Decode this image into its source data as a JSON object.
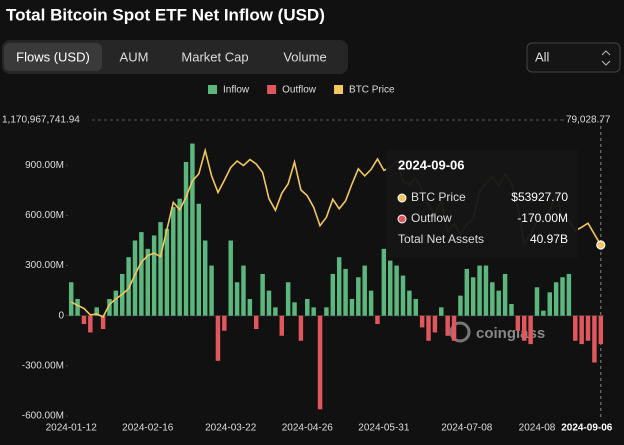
{
  "header": {
    "title": "Total Bitcoin Spot ETF Net Inflow (USD)",
    "tabs": [
      "Flows (USD)",
      "AUM",
      "Market Cap",
      "Volume"
    ],
    "select": "All"
  },
  "chart_data": {
    "type": "bar",
    "watermark": "coinglass",
    "categories": [
      "2024-01-12",
      null,
      null,
      null,
      null,
      null,
      null,
      null,
      null,
      null,
      null,
      null,
      "2024-02-16",
      null,
      null,
      null,
      null,
      null,
      null,
      null,
      null,
      null,
      null,
      null,
      null,
      "2024-03-22",
      null,
      null,
      null,
      null,
      null,
      null,
      null,
      null,
      null,
      null,
      null,
      "2024-04-26",
      null,
      null,
      null,
      null,
      null,
      null,
      null,
      null,
      null,
      null,
      null,
      "2024-05-31",
      null,
      null,
      null,
      null,
      null,
      null,
      null,
      null,
      null,
      null,
      null,
      null,
      "2024-07-08",
      null,
      null,
      null,
      null,
      null,
      null,
      null,
      null,
      null,
      null,
      "2024-08",
      null,
      null,
      null,
      null,
      null,
      null,
      null,
      null,
      null,
      "2024-09-06"
    ],
    "values": [
      200000000,
      100000000,
      -50000000,
      -100000000,
      50000000,
      -80000000,
      100000000,
      150000000,
      250000000,
      350000000,
      450000000,
      500000000,
      400000000,
      480000000,
      560000000,
      520000000,
      650000000,
      700000000,
      920000000,
      1030000000,
      670000000,
      450000000,
      300000000,
      -270000000,
      -90000000,
      450000000,
      200000000,
      300000000,
      100000000,
      -80000000,
      250000000,
      150000000,
      50000000,
      -120000000,
      200000000,
      80000000,
      -150000000,
      100000000,
      50000000,
      -560000000,
      50000000,
      250000000,
      350000000,
      280000000,
      100000000,
      230000000,
      300000000,
      150000000,
      -50000000,
      400000000,
      330000000,
      300000000,
      240000000,
      150000000,
      100000000,
      -70000000,
      -150000000,
      -100000000,
      50000000,
      -120000000,
      -150000000,
      120000000,
      280000000,
      230000000,
      300000000,
      300000000,
      200000000,
      150000000,
      250000000,
      70000000,
      -90000000,
      -150000000,
      -170000000,
      170000000,
      30000000,
      140000000,
      200000000,
      230000000,
      250000000,
      -150000000,
      -170000000,
      -150000000,
      -280000000,
      -170000000
    ],
    "series": [
      {
        "name": "Inflow",
        "color": "#5cb77e"
      },
      {
        "name": "Outflow",
        "color": "#e0585d"
      },
      {
        "name": "BTC Price",
        "color": "#f2c75c",
        "axis": "y2",
        "type": "line",
        "values": [
          42500,
          41800,
          41200,
          39900,
          40100,
          39500,
          42000,
          43100,
          44000,
          45200,
          48000,
          50500,
          51800,
          52300,
          51600,
          57000,
          62500,
          61000,
          63500,
          66800,
          68200,
          72900,
          67800,
          64500,
          66900,
          69500,
          70800,
          69900,
          71100,
          70200,
          68500,
          63200,
          60900,
          64300,
          66200,
          70600,
          65000,
          63800,
          61500,
          57800,
          59500,
          63100,
          61200,
          62800,
          66200,
          69200,
          67800,
          69100,
          71200,
          68900,
          69500,
          70800,
          66700,
          66000,
          67400,
          64900,
          61800,
          60300,
          62800,
          56600,
          58200,
          56100,
          58000,
          59200,
          64800,
          66400,
          67600,
          65800,
          68200,
          66300,
          61400,
          54200,
          56000,
          58700,
          59100,
          60800,
          64100,
          59400,
          58900,
          56800,
          57500,
          58300,
          56100,
          53927.7
        ]
      }
    ],
    "ylim": [
      -624000000,
      1170967741.94
    ],
    "yticks": [
      {
        "value": 1170967741.94,
        "label": "1,170,967,741.94"
      },
      {
        "value": 900000000,
        "label": "900.00M"
      },
      {
        "value": 600000000,
        "label": "600.00M"
      },
      {
        "value": 300000000,
        "label": "300.00M"
      },
      0,
      {
        "value": -300000000,
        "label": "-300.00M"
      },
      {
        "value": -600000000,
        "label": "-600.00M"
      }
    ],
    "y2lim": [
      18788,
      79028.77
    ],
    "y2ticks": [
      {
        "value": 79028.77,
        "label": "79,028.77"
      }
    ],
    "grid": false,
    "tooltip": {
      "date": "2024-09-06",
      "items": [
        {
          "name": "BTC Price",
          "color": "#f2c75c",
          "value": 53927.7,
          "value_label": "$53927.70"
        },
        {
          "name": "Outflow",
          "color": "#e0585d",
          "value": -170000000,
          "value_label": "-170.00M"
        }
      ],
      "total_name": "Total Net Assets",
      "total": 40970000000,
      "total_label": "40.97B"
    }
  }
}
